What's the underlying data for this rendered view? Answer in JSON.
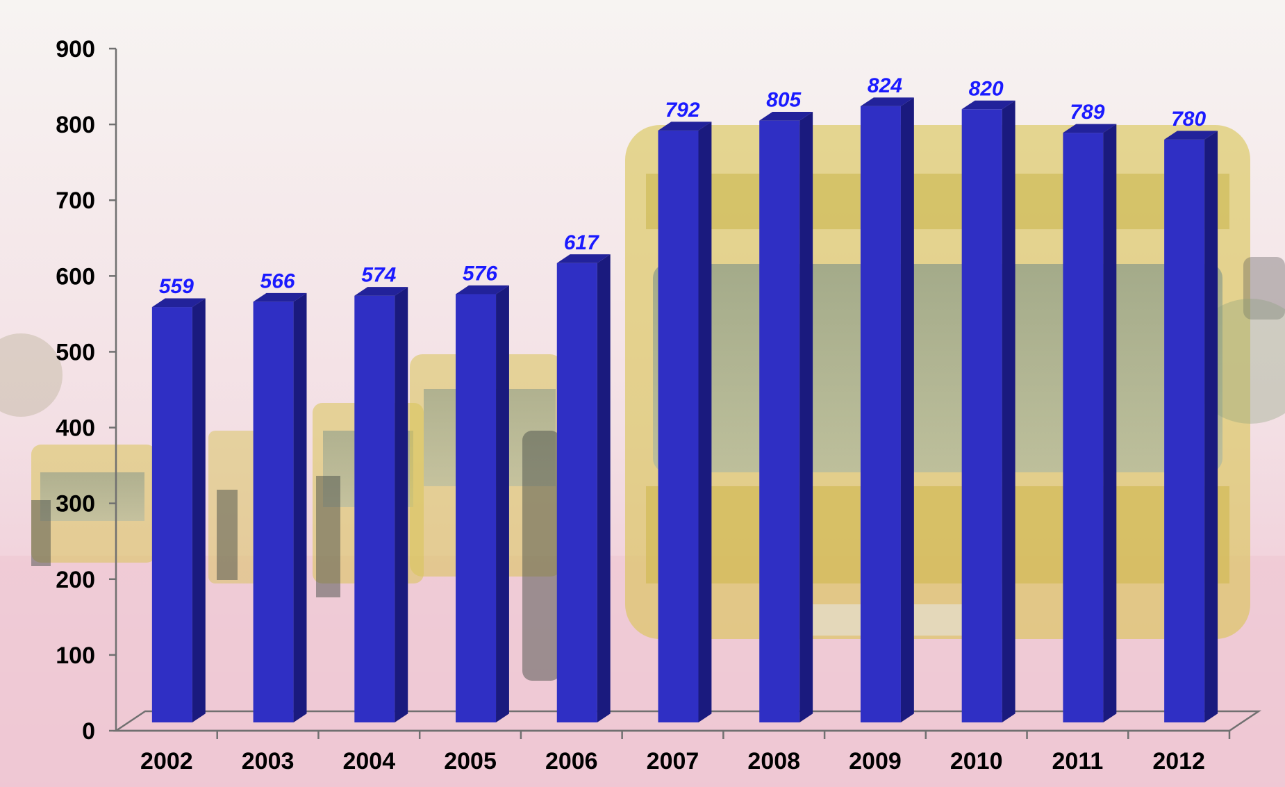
{
  "chart_data": {
    "type": "bar",
    "categories": [
      "2002",
      "2003",
      "2004",
      "2005",
      "2006",
      "2007",
      "2008",
      "2009",
      "2010",
      "2011",
      "2012"
    ],
    "values": [
      559,
      566,
      574,
      576,
      617,
      792,
      805,
      824,
      820,
      789,
      780
    ],
    "title": "",
    "xlabel": "",
    "ylabel": "",
    "ylim": [
      0,
      900
    ],
    "yticks": [
      "0",
      "100",
      "200",
      "300",
      "400",
      "500",
      "600",
      "700",
      "800",
      "900"
    ],
    "data_labels": [
      "559",
      "566",
      "574",
      "576",
      "617",
      "792",
      "805",
      "824",
      "820",
      "789",
      "780"
    ],
    "grid": false,
    "legend": "none",
    "style": {
      "bar_front_color": "#2f2fc4",
      "bar_side_color": "#1a1a7e",
      "bar_top_color": "#22229a",
      "data_label_color": "#1a1aff",
      "tick_label_color": "#000000",
      "axis_color": "#707070",
      "background_photo": "bus-fleet-photo"
    }
  }
}
